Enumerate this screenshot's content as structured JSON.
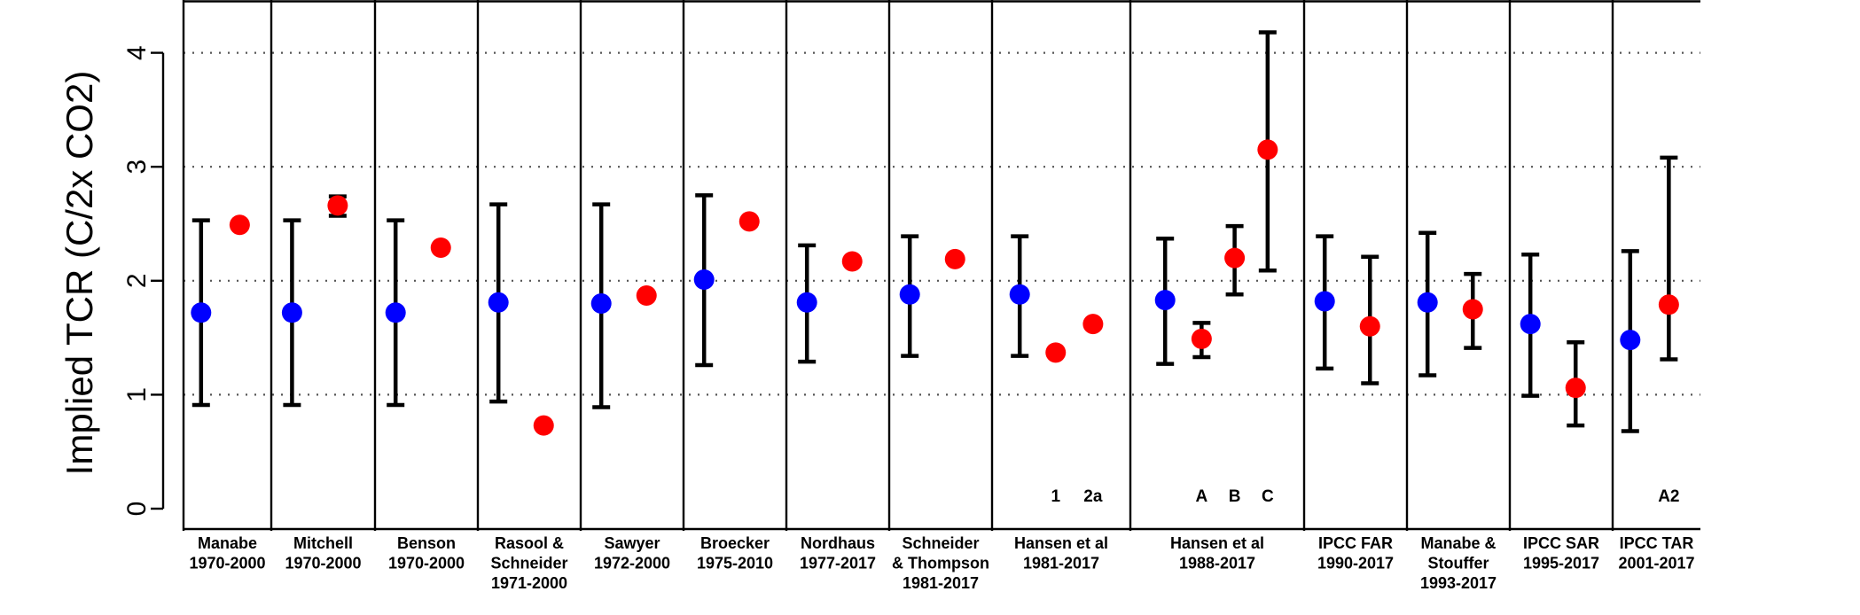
{
  "chart_data": {
    "type": "scatter",
    "title": "",
    "ylabel": "Implied TCR (C/2x CO2)",
    "xlabel": "",
    "ylim": [
      0,
      4
    ],
    "yticks": [
      0,
      1,
      2,
      3,
      4
    ],
    "grid": "horizontal dotted",
    "colors": {
      "observed": "#0000ff",
      "model": "#ff0000",
      "errorbar": "#000000",
      "grid": "#555555"
    },
    "panels": [
      {
        "label": [
          "Manabe",
          "1970-2000"
        ],
        "points": [
          {
            "kind": "observed",
            "value": 1.72,
            "low": 0.91,
            "high": 2.53
          },
          {
            "kind": "model",
            "value": 2.49
          }
        ]
      },
      {
        "label": [
          "Mitchell",
          "1970-2000"
        ],
        "points": [
          {
            "kind": "observed",
            "value": 1.72,
            "low": 0.91,
            "high": 2.53
          },
          {
            "kind": "model",
            "value": 2.66,
            "low": 2.57,
            "high": 2.74
          }
        ]
      },
      {
        "label": [
          "Benson",
          "1970-2000"
        ],
        "points": [
          {
            "kind": "observed",
            "value": 1.72,
            "low": 0.91,
            "high": 2.53
          },
          {
            "kind": "model",
            "value": 2.29
          }
        ]
      },
      {
        "label": [
          "Rasool &",
          "Schneider",
          "1971-2000"
        ],
        "points": [
          {
            "kind": "observed",
            "value": 1.81,
            "low": 0.94,
            "high": 2.67
          },
          {
            "kind": "model",
            "value": 0.73
          }
        ]
      },
      {
        "label": [
          "Sawyer",
          "1972-2000"
        ],
        "points": [
          {
            "kind": "observed",
            "value": 1.8,
            "low": 0.89,
            "high": 2.67
          },
          {
            "kind": "model",
            "value": 1.87
          }
        ]
      },
      {
        "label": [
          "Broecker",
          "1975-2010"
        ],
        "points": [
          {
            "kind": "observed",
            "value": 2.01,
            "low": 1.26,
            "high": 2.75
          },
          {
            "kind": "model",
            "value": 2.52
          }
        ]
      },
      {
        "label": [
          "Nordhaus",
          "1977-2017"
        ],
        "points": [
          {
            "kind": "observed",
            "value": 1.81,
            "low": 1.29,
            "high": 2.31
          },
          {
            "kind": "model",
            "value": 2.17
          }
        ]
      },
      {
        "label": [
          "Schneider",
          "& Thompson",
          "1981-2017"
        ],
        "points": [
          {
            "kind": "observed",
            "value": 1.88,
            "low": 1.34,
            "high": 2.39
          },
          {
            "kind": "model",
            "value": 2.19
          }
        ]
      },
      {
        "label": [
          "Hansen et al",
          "1981-2017"
        ],
        "points": [
          {
            "kind": "observed",
            "value": 1.88,
            "low": 1.34,
            "high": 2.39
          },
          {
            "kind": "model",
            "value": 1.37,
            "scenario": "1"
          },
          {
            "kind": "model",
            "value": 1.62,
            "scenario": "2a"
          }
        ]
      },
      {
        "label": [
          "Hansen et al",
          "1988-2017"
        ],
        "points": [
          {
            "kind": "observed",
            "value": 1.83,
            "low": 1.27,
            "high": 2.37
          },
          {
            "kind": "model",
            "value": 1.49,
            "low": 1.33,
            "high": 1.63,
            "scenario": "A"
          },
          {
            "kind": "model",
            "value": 2.2,
            "low": 1.88,
            "high": 2.48,
            "scenario": "B"
          },
          {
            "kind": "model",
            "value": 3.15,
            "low": 2.09,
            "high": 4.18,
            "scenario": "C"
          }
        ]
      },
      {
        "label": [
          "IPCC FAR",
          "1990-2017"
        ],
        "points": [
          {
            "kind": "observed",
            "value": 1.82,
            "low": 1.23,
            "high": 2.39
          },
          {
            "kind": "model",
            "value": 1.6,
            "low": 1.1,
            "high": 2.21
          }
        ]
      },
      {
        "label": [
          "Manabe &",
          "Stouffer",
          "1993-2017"
        ],
        "points": [
          {
            "kind": "observed",
            "value": 1.81,
            "low": 1.17,
            "high": 2.42
          },
          {
            "kind": "model",
            "value": 1.75,
            "low": 1.41,
            "high": 2.06
          }
        ]
      },
      {
        "label": [
          "IPCC SAR",
          "1995-2017"
        ],
        "points": [
          {
            "kind": "observed",
            "value": 1.62,
            "low": 0.99,
            "high": 2.23
          },
          {
            "kind": "model",
            "value": 1.06,
            "low": 0.73,
            "high": 1.46
          }
        ]
      },
      {
        "label": [
          "IPCC TAR",
          "2001-2017"
        ],
        "points": [
          {
            "kind": "observed",
            "value": 1.48,
            "low": 0.68,
            "high": 2.26
          },
          {
            "kind": "model",
            "value": 1.79,
            "low": 1.31,
            "high": 3.08,
            "scenario": "A2"
          }
        ]
      }
    ]
  }
}
